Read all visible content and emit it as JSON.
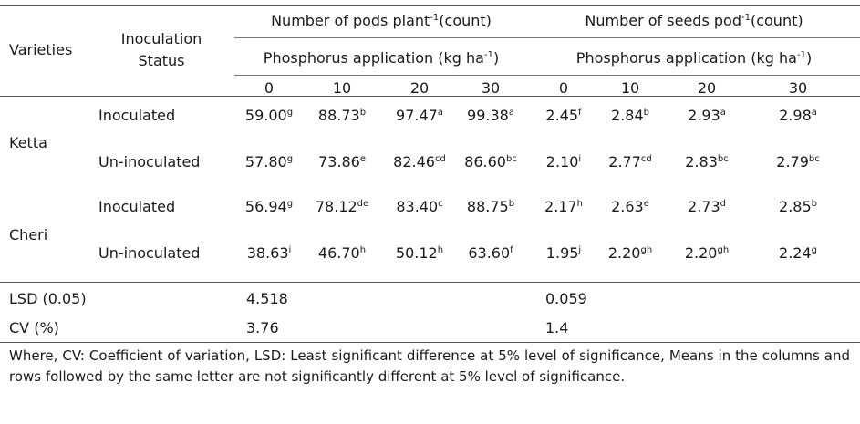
{
  "header": {
    "varieties": "Varieties",
    "inoculation_line1": "Inoculation",
    "inoculation_line2": "Status",
    "pods_group": {
      "text": "Number of pods plant",
      "sup": "-1",
      "unit": "(count)"
    },
    "seeds_group": {
      "text": "Number of seeds pod",
      "sup": "-1",
      "unit": "(count)"
    },
    "phosphorus": {
      "text": "Phosphorus application (kg ha",
      "sup": "-1",
      "close": ")"
    },
    "levels": [
      "0",
      "10",
      "20",
      "30"
    ]
  },
  "rows": [
    {
      "variety": "Ketta",
      "status": "Inoculated",
      "cells": [
        {
          "v": "59.00",
          "s": "g"
        },
        {
          "v": "88.73",
          "s": "b"
        },
        {
          "v": "97.47",
          "s": "a"
        },
        {
          "v": "99.38",
          "s": "a"
        },
        {
          "v": "2.45",
          "s": "f"
        },
        {
          "v": "2.84",
          "s": "b"
        },
        {
          "v": "2.93",
          "s": "a"
        },
        {
          "v": "2.98",
          "s": "a"
        }
      ]
    },
    {
      "variety": "",
      "status": "Un-inoculated",
      "cells": [
        {
          "v": "57.80",
          "s": "g"
        },
        {
          "v": "73.86",
          "s": "e"
        },
        {
          "v": "82.46",
          "s": "cd"
        },
        {
          "v": "86.60",
          "s": "bc"
        },
        {
          "v": "2.10",
          "s": "i"
        },
        {
          "v": "2.77",
          "s": "cd"
        },
        {
          "v": "2.83",
          "s": "bc"
        },
        {
          "v": "2.79",
          "s": "bc"
        }
      ]
    },
    {
      "variety": "Cheri",
      "status": "Inoculated",
      "cells": [
        {
          "v": "56.94",
          "s": "g"
        },
        {
          "v": "78.12",
          "s": "de"
        },
        {
          "v": "83.40",
          "s": "c"
        },
        {
          "v": "88.75",
          "s": "b"
        },
        {
          "v": "2.17",
          "s": "h"
        },
        {
          "v": "2.63",
          "s": "e"
        },
        {
          "v": "2.73",
          "s": "d"
        },
        {
          "v": "2.85",
          "s": "b"
        }
      ]
    },
    {
      "variety": "",
      "status": "Un-inoculated",
      "cells": [
        {
          "v": "38.63",
          "s": "i"
        },
        {
          "v": "46.70",
          "s": "h"
        },
        {
          "v": "50.12",
          "s": "h"
        },
        {
          "v": "63.60",
          "s": "f"
        },
        {
          "v": "1.95",
          "s": "j"
        },
        {
          "v": "2.20",
          "s": "gh"
        },
        {
          "v": "2.20",
          "s": "gh"
        },
        {
          "v": "2.24",
          "s": "g"
        }
      ]
    }
  ],
  "stats": [
    {
      "label": "LSD (0.05)",
      "pods": "4.518",
      "seeds": "0.059"
    },
    {
      "label": "CV (%)",
      "pods": "3.76",
      "seeds": "1.4"
    }
  ],
  "footnote": "Where, CV: Coefficient of variation, LSD: Least significant difference at 5% level of significance, Means in the columns and rows followed by the same letter are not significantly different at 5% level of significance."
}
